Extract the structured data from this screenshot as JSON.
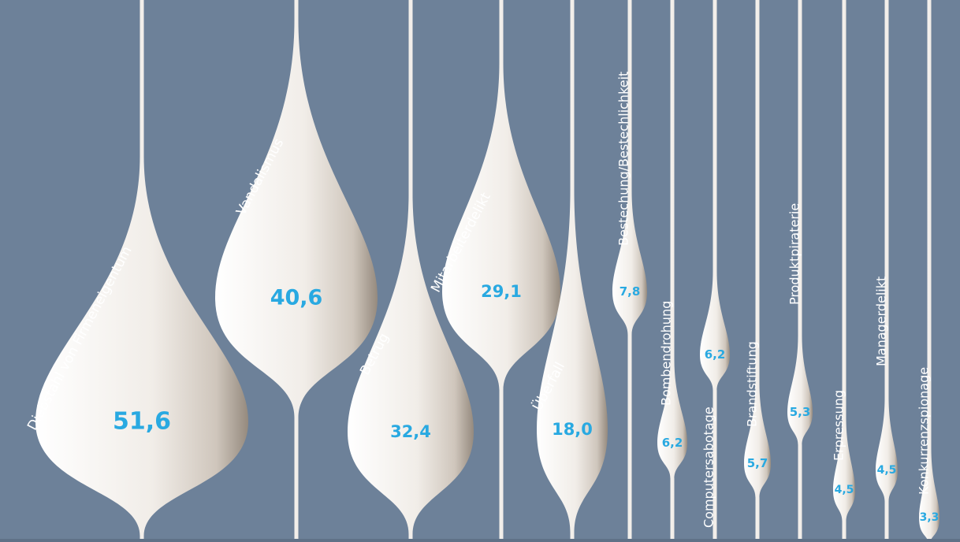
{
  "chart_data": {
    "type": "bar",
    "title": "",
    "xlabel": "",
    "ylabel": "",
    "categories": [
      "Diebstahl von Firmeneigentum",
      "Vandalismus",
      "Betrug",
      "Mitarbeiterdelikt",
      "Überfall",
      "Bestechung/Bestechlichkeit",
      "Bombendrohung",
      "Computersabotage",
      "Brandstiftung",
      "Produktpiraterie",
      "Erpressung",
      "Managerdelikt",
      "Konkurrenzspionage"
    ],
    "values": [
      51.6,
      40.6,
      32.4,
      29.1,
      18.0,
      7.8,
      6.2,
      6.2,
      5.7,
      5.3,
      4.5,
      4.5,
      3.3
    ],
    "value_labels": [
      "51,6",
      "40,6",
      "32,4",
      "29,1",
      "18,0",
      "7,8",
      "6,2",
      "6,2",
      "5,7",
      "5,3",
      "4,5",
      "4,5",
      "3,3"
    ],
    "colors": {
      "background": "#6d8199",
      "drop": "#f3f0ec",
      "drop_shade": "#9c9286",
      "value": "#29a9e1",
      "label": "#ffffff"
    }
  }
}
